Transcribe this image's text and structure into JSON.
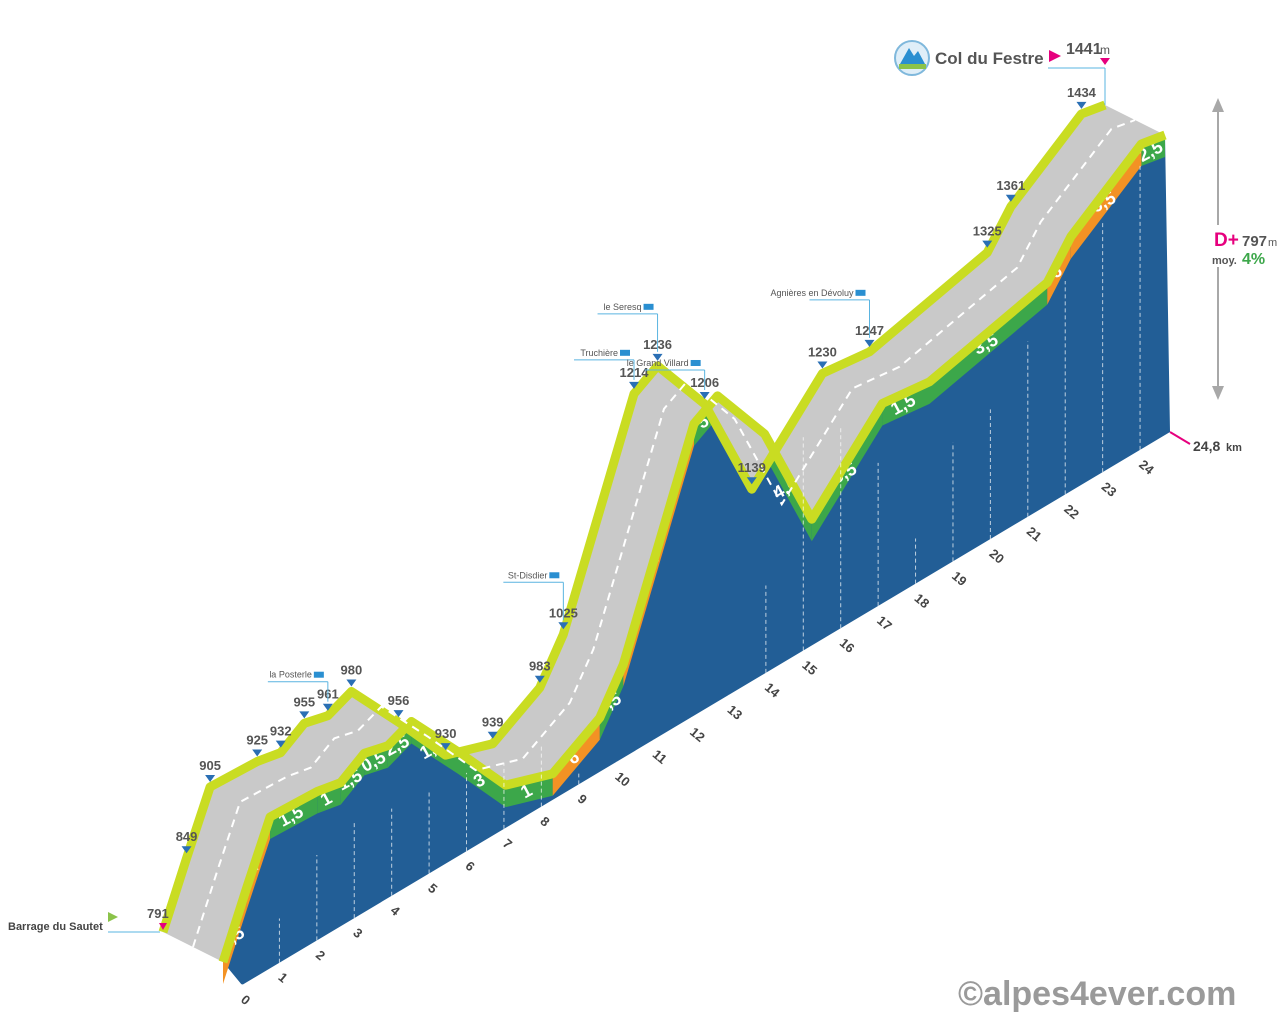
{
  "chart_data": {
    "type": "area",
    "title": "Col du Festre",
    "summit": {
      "altitude": 1441,
      "unit": "m"
    },
    "start": {
      "name": "Barrage du Sautet",
      "altitude": 791
    },
    "total_distance": "24,8",
    "distance_unit": "km",
    "elevation_gain": {
      "label": "D+",
      "value": 797,
      "unit": "m"
    },
    "average_gradient": {
      "label": "moy.",
      "value": "4%"
    },
    "x_ticks": [
      "0",
      "1",
      "2",
      "3",
      "4",
      "5",
      "6",
      "7",
      "8",
      "9",
      "10",
      "11",
      "12",
      "13",
      "14",
      "15",
      "16",
      "17",
      "18",
      "19",
      "20",
      "21",
      "22",
      "23",
      "24"
    ],
    "profile": [
      {
        "km": 0,
        "alt": 791
      },
      {
        "km": 0.5,
        "alt": 849
      },
      {
        "km": 1,
        "alt": 905
      },
      {
        "km": 2,
        "alt": 925
      },
      {
        "km": 2.5,
        "alt": 932
      },
      {
        "km": 3,
        "alt": 955
      },
      {
        "km": 3.5,
        "alt": 961
      },
      {
        "km": 4,
        "alt": 980
      },
      {
        "km": 5,
        "alt": 956
      },
      {
        "km": 6,
        "alt": 930
      },
      {
        "km": 7,
        "alt": 939
      },
      {
        "km": 8,
        "alt": 983
      },
      {
        "km": 8.5,
        "alt": 1025
      },
      {
        "km": 10,
        "alt": 1214
      },
      {
        "km": 10.5,
        "alt": 1236
      },
      {
        "km": 11.5,
        "alt": 1206
      },
      {
        "km": 12.5,
        "alt": 1139
      },
      {
        "km": 14,
        "alt": 1230
      },
      {
        "km": 15,
        "alt": 1247
      },
      {
        "km": 17.5,
        "alt": 1325
      },
      {
        "km": 18,
        "alt": 1361
      },
      {
        "km": 19.5,
        "alt": 1434
      },
      {
        "km": 20,
        "alt": 1441
      }
    ],
    "altitude_markers": [
      {
        "value": "791",
        "u": 0
      },
      {
        "value": "849",
        "u": 0.5
      },
      {
        "value": "905",
        "u": 1
      },
      {
        "value": "925",
        "u": 2
      },
      {
        "value": "932",
        "u": 2.5
      },
      {
        "value": "955",
        "u": 3
      },
      {
        "value": "961",
        "u": 3.5
      },
      {
        "value": "980",
        "u": 4
      },
      {
        "value": "956",
        "u": 5
      },
      {
        "value": "930",
        "u": 6
      },
      {
        "value": "939",
        "u": 7
      },
      {
        "value": "983",
        "u": 8
      },
      {
        "value": "1025",
        "u": 8.5
      },
      {
        "value": "1214",
        "u": 10
      },
      {
        "value": "1236",
        "u": 10.5
      },
      {
        "value": "1206",
        "u": 11.5
      },
      {
        "value": "1139",
        "u": 12.5
      },
      {
        "value": "1230",
        "u": 14
      },
      {
        "value": "1247",
        "u": 15
      },
      {
        "value": "1325",
        "u": 17.5
      },
      {
        "value": "1361",
        "u": 18
      },
      {
        "value": "1434",
        "u": 19.5
      }
    ],
    "places": [
      {
        "name": "la Posterle",
        "u": 3.5
      },
      {
        "name": "St-Disdier",
        "u": 8.5
      },
      {
        "name": "Truchière",
        "u": 10
      },
      {
        "name": "le Seresq",
        "u": 10.5
      },
      {
        "name": "le Grand Villard",
        "u": 11.5
      },
      {
        "name": "Agnières en Dévoluy",
        "u": 15
      }
    ],
    "gradients": [
      {
        "value": "7,5",
        "color": "orange"
      },
      {
        "value": "7",
        "color": "orange"
      },
      {
        "value": "1,5",
        "color": "green"
      },
      {
        "value": "1",
        "color": "green"
      },
      {
        "value": "1,5",
        "color": "green"
      },
      {
        "value": "0,5",
        "color": "green"
      },
      {
        "value": "2,5",
        "color": "green"
      },
      {
        "value": "1,5",
        "color": "green"
      },
      {
        "value": "3",
        "color": "green"
      },
      {
        "value": "1",
        "color": "green"
      },
      {
        "value": "6",
        "color": "orange"
      },
      {
        "value": "3,5",
        "color": "green"
      },
      {
        "value": "7",
        "color": "orange"
      },
      {
        "value": "5",
        "color": "green"
      },
      {
        "value": "3",
        "color": "green"
      },
      {
        "value": "4,5",
        "color": "green"
      },
      {
        "value": "5,5",
        "color": "green"
      },
      {
        "value": "1,5",
        "color": "green"
      },
      {
        "value": "3,5",
        "color": "green"
      },
      {
        "value": "6",
        "color": "orange"
      },
      {
        "value": "6,5",
        "color": "orange"
      },
      {
        "value": "2,5",
        "color": "green"
      }
    ],
    "colors": {
      "side": "#225e96",
      "road": "#c9c9c9",
      "edge": "#c9dc22",
      "green": "#3ca74a",
      "orange": "#f39224",
      "accent_pink": "#e6007e",
      "flag_green": "#8bc34a",
      "marker_blue": "#2a6fb4"
    }
  },
  "credit": "©alpes4ever.com"
}
